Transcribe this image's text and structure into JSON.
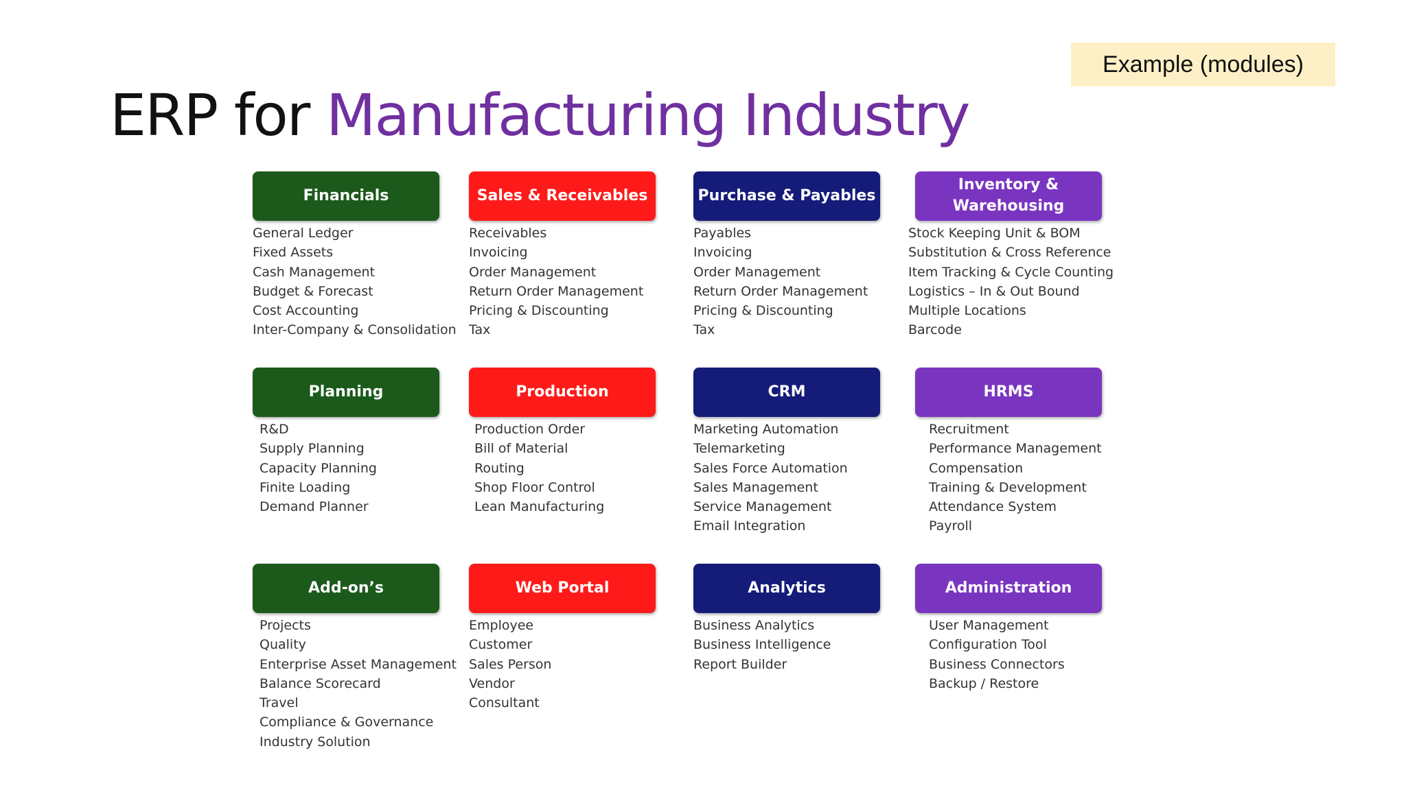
{
  "tag": "Example (modules)",
  "title": {
    "prefix": "ERP for ",
    "accent": "Manufacturing Industry"
  },
  "colors": {
    "green": "#1c5a1c",
    "red": "#ff1a1a",
    "navy": "#141b78",
    "purple": "#7a35c0",
    "accent": "#7030a0"
  },
  "modules": [
    {
      "title": "Financials",
      "items": [
        "General Ledger",
        "Fixed Assets",
        "Cash Management",
        "Budget & Forecast",
        "Cost Accounting",
        "Inter-Company & Consolidation"
      ]
    },
    {
      "title": "Sales & Receivables",
      "items": [
        "Receivables",
        "Invoicing",
        "Order Management",
        "Return Order Management",
        "Pricing & Discounting",
        "Tax"
      ]
    },
    {
      "title": "Purchase & Payables",
      "items": [
        "Payables",
        "Invoicing",
        "Order Management",
        "Return Order Management",
        "Pricing & Discounting",
        "Tax"
      ]
    },
    {
      "title": "Inventory &\nWarehousing",
      "items": [
        "Stock Keeping Unit & BOM",
        "Substitution & Cross Reference",
        "Item Tracking & Cycle Counting",
        "Logistics – In & Out Bound",
        "Multiple Locations",
        "Barcode"
      ]
    },
    {
      "title": "Planning",
      "items": [
        "R&D",
        "Supply Planning",
        "Capacity Planning",
        "Finite Loading",
        "Demand Planner"
      ]
    },
    {
      "title": "Production",
      "items": [
        "Production Order",
        "Bill of Material",
        "Routing",
        "Shop Floor Control",
        "Lean Manufacturing"
      ]
    },
    {
      "title": "CRM",
      "items": [
        "Marketing Automation",
        "Telemarketing",
        "Sales Force Automation",
        "Sales Management",
        "Service Management",
        "Email Integration"
      ]
    },
    {
      "title": "HRMS",
      "items": [
        "Recruitment",
        "Performance Management",
        "Compensation",
        "Training & Development",
        "Attendance System",
        "Payroll"
      ]
    },
    {
      "title": "Add-on’s",
      "items": [
        "Projects",
        "Quality",
        "Enterprise Asset Management",
        "Balance Scorecard",
        "Travel",
        "Compliance & Governance",
        "Industry Solution"
      ]
    },
    {
      "title": "Web Portal",
      "items": [
        "Employee",
        "Customer",
        "Sales Person",
        "Vendor",
        "Consultant"
      ]
    },
    {
      "title": "Analytics",
      "items": [
        "Business Analytics",
        "Business Intelligence",
        "Report Builder"
      ]
    },
    {
      "title": "Administration",
      "items": [
        "User Management",
        "Configuration Tool",
        "Business Connectors",
        "Backup / Restore"
      ]
    }
  ]
}
